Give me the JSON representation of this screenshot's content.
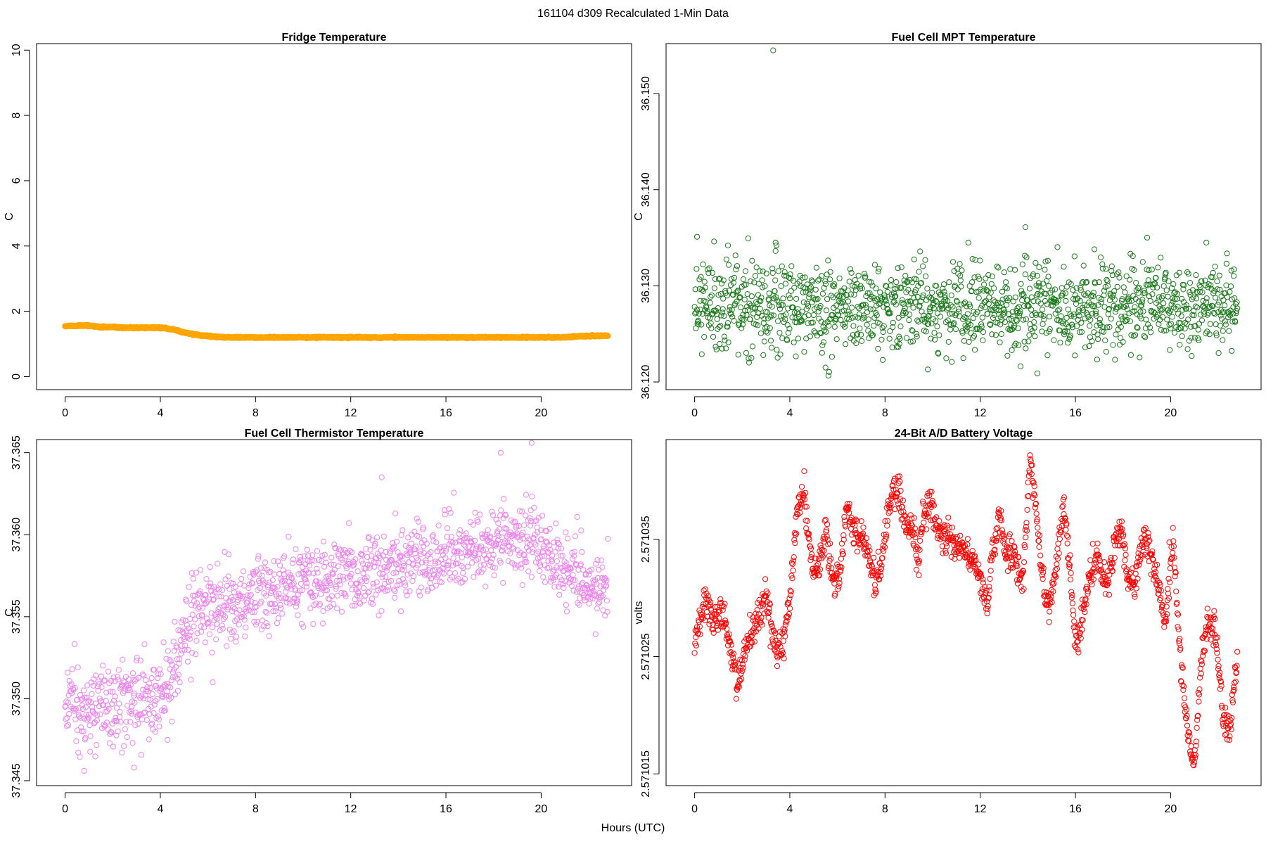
{
  "figure": {
    "suptitle": "161104   d309   Recalculated 1-Min Data",
    "xlabel": "Hours (UTC)"
  },
  "chart_data": [
    {
      "id": "fridge",
      "type": "scatter",
      "title": "Fridge Temperature",
      "ylabel": "C",
      "xlabel": "",
      "xlim": [
        -1.2,
        23.8
      ],
      "ylim": [
        -0.4,
        10.2
      ],
      "xticks": [
        0,
        4,
        8,
        12,
        16,
        20
      ],
      "yticks": [
        0,
        2,
        4,
        6,
        8,
        10
      ],
      "ytick_labels": [
        "0",
        "2",
        "4",
        "6",
        "8",
        "10"
      ],
      "color": "#ffa500",
      "marker": "filled",
      "x_range": [
        0,
        22.8
      ],
      "n_points": 1368,
      "trend": [
        [
          0,
          1.55
        ],
        [
          1,
          1.56
        ],
        [
          1.5,
          1.52
        ],
        [
          2,
          1.52
        ],
        [
          2.5,
          1.5
        ],
        [
          4,
          1.5
        ],
        [
          4.5,
          1.45
        ],
        [
          5,
          1.35
        ],
        [
          5.5,
          1.28
        ],
        [
          6,
          1.24
        ],
        [
          6.5,
          1.21
        ],
        [
          7,
          1.2
        ],
        [
          8,
          1.2
        ],
        [
          21,
          1.2
        ],
        [
          21.5,
          1.23
        ],
        [
          22,
          1.25
        ],
        [
          22.8,
          1.25
        ]
      ],
      "noise": 0.01,
      "outliers": []
    },
    {
      "id": "mpt",
      "type": "scatter",
      "title": "Fuel Cell MPT Temperature",
      "ylabel": "C",
      "xlabel": "",
      "xlim": [
        -1.2,
        23.8
      ],
      "ylim": [
        36.1192,
        36.1552
      ],
      "xticks": [
        0,
        4,
        8,
        12,
        16,
        20
      ],
      "yticks": [
        36.12,
        36.13,
        36.14,
        36.15
      ],
      "ytick_labels": [
        "36.120",
        "36.130",
        "36.140",
        "36.150"
      ],
      "color": "#1a7a1a",
      "marker": "open",
      "x_range": [
        0,
        22.8
      ],
      "n_points": 1368,
      "trend": [
        [
          0,
          36.1278
        ],
        [
          22.8,
          36.1278
        ]
      ],
      "noise": 0.0022,
      "outliers": [
        [
          3.3,
          36.1545
        ],
        [
          13.9,
          36.1361
        ],
        [
          0.1,
          36.1351
        ],
        [
          3.4,
          36.1345
        ],
        [
          11.5,
          36.1345
        ],
        [
          21.5,
          36.1345
        ],
        [
          16.8,
          36.1338
        ],
        [
          1.4,
          36.1342
        ],
        [
          5.5,
          36.1215
        ],
        [
          14.4,
          36.1209
        ],
        [
          9.8,
          36.1213
        ]
      ]
    },
    {
      "id": "thermistor",
      "type": "scatter",
      "title": "Fuel Cell Thermistor Temperature",
      "ylabel": "C",
      "xlabel": "",
      "xlim": [
        -1.2,
        23.8
      ],
      "ylim": [
        37.3447,
        37.3658
      ],
      "xticks": [
        0,
        4,
        8,
        12,
        16,
        20
      ],
      "yticks": [
        37.345,
        37.35,
        37.355,
        37.36,
        37.365
      ],
      "ytick_labels": [
        "37.345",
        "37.350",
        "37.355",
        "37.360",
        "37.365"
      ],
      "color": "#ee82ee",
      "marker": "open",
      "x_range": [
        0,
        22.8
      ],
      "n_points": 1368,
      "trend": [
        [
          0,
          37.3497
        ],
        [
          2,
          37.3497
        ],
        [
          4.2,
          37.3503
        ],
        [
          5,
          37.354
        ],
        [
          6,
          37.3555
        ],
        [
          8,
          37.3563
        ],
        [
          10,
          37.357
        ],
        [
          12,
          37.3577
        ],
        [
          14,
          37.358
        ],
        [
          16,
          37.3588
        ],
        [
          18,
          37.3595
        ],
        [
          19.5,
          37.36
        ],
        [
          20.5,
          37.3585
        ],
        [
          22,
          37.357
        ],
        [
          22.8,
          37.3565
        ]
      ],
      "noise": 0.0012,
      "outliers": [
        [
          19.6,
          37.3656
        ],
        [
          18.3,
          37.365
        ],
        [
          13.3,
          37.3635
        ],
        [
          0.8,
          37.3456
        ],
        [
          2.9,
          37.3458
        ],
        [
          6.2,
          37.351
        ]
      ]
    },
    {
      "id": "battery",
      "type": "scatter",
      "title": "24-Bit A/D Battery Voltage",
      "ylabel": "volts",
      "xlabel": "",
      "xlim": [
        -1.2,
        23.8
      ],
      "ylim": [
        2.571014,
        2.5710435
      ],
      "xticks": [
        0,
        4,
        8,
        12,
        16,
        20
      ],
      "yticks": [
        2.571015,
        2.571025,
        2.571035
      ],
      "ytick_labels": [
        "2.571015",
        "2.571025",
        "2.571035"
      ],
      "color": "#ff0000",
      "marker": "open",
      "x_range": [
        0,
        22.8
      ],
      "n_points": 1368,
      "trend": [
        [
          0,
          2.571026
        ],
        [
          0.5,
          2.57103
        ],
        [
          0.8,
          2.571028
        ],
        [
          1.2,
          2.5710285
        ],
        [
          1.5,
          2.571026
        ],
        [
          1.8,
          2.5710225
        ],
        [
          2.2,
          2.571026
        ],
        [
          2.6,
          2.571028
        ],
        [
          3.0,
          2.5710305
        ],
        [
          3.3,
          2.5710265
        ],
        [
          3.7,
          2.5710255
        ],
        [
          4.0,
          2.57103
        ],
        [
          4.3,
          2.571037
        ],
        [
          4.6,
          2.571039
        ],
        [
          4.9,
          2.571033
        ],
        [
          5.2,
          2.5710325
        ],
        [
          5.5,
          2.571036
        ],
        [
          5.8,
          2.571031
        ],
        [
          6.1,
          2.571032
        ],
        [
          6.4,
          2.571038
        ],
        [
          6.7,
          2.571036
        ],
        [
          7.0,
          2.571035
        ],
        [
          7.3,
          2.571034
        ],
        [
          7.6,
          2.571031
        ],
        [
          7.9,
          2.571034
        ],
        [
          8.3,
          2.571039
        ],
        [
          8.6,
          2.571039
        ],
        [
          8.9,
          2.571036
        ],
        [
          9.2,
          2.5710355
        ],
        [
          9.4,
          2.571033
        ],
        [
          9.6,
          2.571037
        ],
        [
          9.9,
          2.571038
        ],
        [
          10.2,
          2.571036
        ],
        [
          10.6,
          2.571035
        ],
        [
          11.0,
          2.5710345
        ],
        [
          11.5,
          2.571034
        ],
        [
          12.0,
          2.5710315
        ],
        [
          12.3,
          2.571029
        ],
        [
          12.5,
          2.571034
        ],
        [
          12.8,
          2.571037
        ],
        [
          13.1,
          2.5710335
        ],
        [
          13.4,
          2.571034
        ],
        [
          13.8,
          2.571031
        ],
        [
          14.1,
          2.5710425
        ],
        [
          14.4,
          2.571036
        ],
        [
          14.7,
          2.5710305
        ],
        [
          14.9,
          2.571029
        ],
        [
          15.2,
          2.571033
        ],
        [
          15.5,
          2.571038
        ],
        [
          15.8,
          2.571032
        ],
        [
          16.0,
          2.571026
        ],
        [
          16.3,
          2.571028
        ],
        [
          16.6,
          2.571032
        ],
        [
          16.9,
          2.5710335
        ],
        [
          17.3,
          2.571031
        ],
        [
          17.6,
          2.5710335
        ],
        [
          17.9,
          2.5710365
        ],
        [
          18.2,
          2.571032
        ],
        [
          18.5,
          2.571031
        ],
        [
          18.8,
          2.571035
        ],
        [
          19.1,
          2.5710345
        ],
        [
          19.4,
          2.571032
        ],
        [
          19.8,
          2.571028
        ],
        [
          20.1,
          2.5710355
        ],
        [
          20.4,
          2.571025
        ],
        [
          20.7,
          2.571019
        ],
        [
          21.0,
          2.5710155
        ],
        [
          21.3,
          2.571025
        ],
        [
          21.6,
          2.5710285
        ],
        [
          21.9,
          2.571027
        ],
        [
          22.2,
          2.57102
        ],
        [
          22.5,
          2.571019
        ],
        [
          22.8,
          2.571025
        ]
      ],
      "noise": 7e-07,
      "outliers": []
    }
  ]
}
